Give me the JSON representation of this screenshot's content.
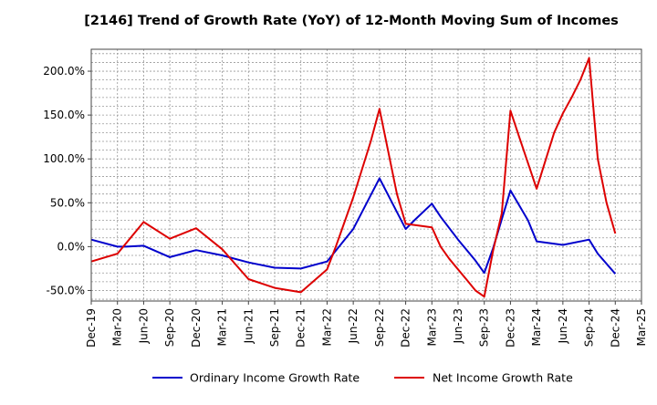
{
  "chart_data": {
    "type": "line",
    "title": "[2146]  Trend of Growth Rate (YoY) of 12-Month Moving Sum of Incomes",
    "xlabel": "",
    "ylabel": "",
    "x_tick_labels": [
      "Dec-19",
      "Mar-20",
      "Jun-20",
      "Sep-20",
      "Dec-20",
      "Mar-21",
      "Jun-21",
      "Sep-21",
      "Dec-21",
      "Mar-22",
      "Jun-22",
      "Sep-22",
      "Dec-22",
      "Mar-23",
      "Jun-23",
      "Sep-23",
      "Dec-23",
      "Mar-24",
      "Jun-24",
      "Sep-24",
      "Dec-24",
      "Mar-25"
    ],
    "y_ticks": [
      -50,
      0,
      50,
      100,
      150,
      200
    ],
    "y_tick_labels": [
      "-50.0%",
      "0.0%",
      "50.0%",
      "100.0%",
      "150.0%",
      "200.0%"
    ],
    "ylim": [
      -62,
      225
    ],
    "x_range_months": [
      0,
      63
    ],
    "grid": true,
    "legend_position": "bottom",
    "series": [
      {
        "name": "Ordinary Income Growth Rate",
        "color": "#0000cc",
        "x": [
          0,
          3,
          4,
          6,
          9,
          12,
          15,
          18,
          21,
          24,
          27,
          30,
          33,
          36,
          37,
          39,
          40,
          42,
          44,
          45,
          46,
          48,
          50,
          51,
          54,
          57,
          58,
          60,
          61,
          63
        ],
        "y": [
          8,
          0,
          0,
          1,
          -12,
          -4,
          -10,
          -18,
          -24,
          -25,
          -17,
          20,
          78,
          20,
          30,
          49,
          34,
          8,
          -16,
          -30,
          -2,
          64,
          30,
          6,
          2,
          8,
          -8,
          -31,
          null,
          null
        ]
      },
      {
        "name": "Net Income Growth Rate",
        "color": "#dd0000",
        "x": [
          0,
          3,
          6,
          9,
          12,
          15,
          18,
          21,
          24,
          27,
          28,
          30,
          32,
          33,
          35,
          36,
          39,
          40,
          41,
          43,
          44,
          45,
          46,
          47,
          48,
          49,
          51,
          53,
          54,
          55,
          56,
          57,
          58,
          59,
          60
        ],
        "y": [
          -17,
          -8,
          28,
          9,
          21,
          -3,
          -37,
          -47,
          -52,
          -26,
          0,
          56,
          120,
          157,
          60,
          26,
          22,
          0,
          -14,
          -38,
          -50,
          -57,
          -5,
          38,
          155,
          125,
          66,
          130,
          152,
          170,
          190,
          215,
          100,
          50,
          15
        ]
      }
    ]
  }
}
